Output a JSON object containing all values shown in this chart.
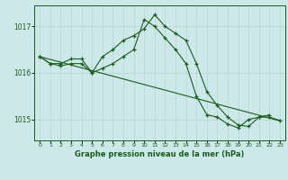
{
  "title": "Graphe pression niveau de la mer (hPa)",
  "background_color": "#cce8e8",
  "grid_color": "#b8d8d8",
  "line_color": "#1a5c1a",
  "xlim": [
    -0.5,
    23.5
  ],
  "ylim": [
    1014.55,
    1017.45
  ],
  "yticks": [
    1015,
    1016,
    1017
  ],
  "xticks": [
    0,
    1,
    2,
    3,
    4,
    5,
    6,
    7,
    8,
    9,
    10,
    11,
    12,
    13,
    14,
    15,
    16,
    17,
    18,
    19,
    20,
    21,
    22,
    23
  ],
  "line1_x": [
    0,
    1,
    2,
    3,
    4,
    5,
    6,
    7,
    8,
    9,
    10,
    11,
    12,
    13,
    14,
    15,
    16,
    17,
    18,
    19,
    20,
    21,
    22
  ],
  "line1_y": [
    1016.35,
    1016.2,
    1016.2,
    1016.3,
    1016.3,
    1016.0,
    1016.35,
    1016.5,
    1016.7,
    1016.8,
    1016.95,
    1017.25,
    1017.0,
    1016.85,
    1016.7,
    1016.2,
    1015.6,
    1015.3,
    1015.05,
    1014.88,
    1014.85,
    1015.05,
    1015.1
  ],
  "line2_x": [
    0,
    1,
    2,
    3,
    4,
    5,
    6,
    7,
    8,
    9,
    10,
    11,
    12,
    13,
    14,
    15,
    16,
    17,
    18,
    19,
    20,
    21,
    22,
    23
  ],
  "line2_y": [
    1016.35,
    1016.2,
    1016.15,
    1016.2,
    1016.2,
    1016.0,
    1016.1,
    1016.2,
    1016.35,
    1016.5,
    1017.15,
    1017.0,
    1016.75,
    1016.5,
    1016.2,
    1015.5,
    1015.1,
    1015.05,
    1014.9,
    1014.82,
    1015.0,
    1015.05,
    1015.05,
    1014.98
  ],
  "line3_x": [
    0,
    23
  ],
  "line3_y": [
    1016.35,
    1014.97
  ]
}
